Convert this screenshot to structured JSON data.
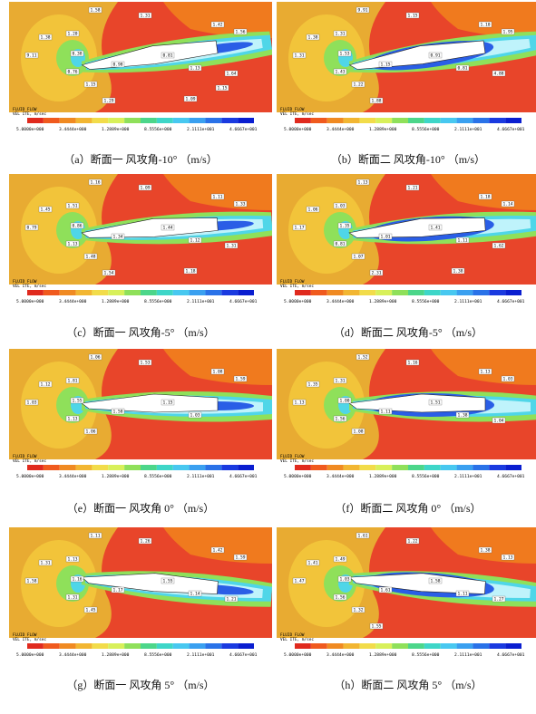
{
  "figure": {
    "panels": [
      {
        "id": "a",
        "caption": "（a）断面一  风攻角-10°  （m/s）",
        "header": [
          "FLUID FLOW",
          "VEL ITE, m/sec"
        ],
        "labels": [
          "1.58",
          "1.31",
          "1.42",
          "1.56",
          "1.38",
          "1.20",
          "9.11",
          "0.38",
          "0.76",
          "1.15",
          "0.98",
          "0.81",
          "1.13",
          "1.64",
          "1.29",
          "1.09",
          "1.15"
        ],
        "legend_values": [
          "5.0000e+000",
          "3.4444e+000",
          "1.2889e+000",
          "8.5556e+000",
          "2.1111e+001",
          "4.6667e+001"
        ]
      },
      {
        "id": "b",
        "caption": "（b）断面二  风攻角-10°  （m/s）",
        "header": [
          "FLUID FLOW",
          "VEL ITE, m/sec"
        ],
        "labels": [
          "9.91",
          "1.15",
          "1.10",
          "1.95",
          "1.38",
          "1.31",
          "1.31",
          "1.53",
          "1.43",
          "1.22",
          "1.15",
          "0.91",
          "0.81",
          "4.88",
          "1.88"
        ],
        "legend_values": [
          "5.0000e+000",
          "3.4444e+000",
          "1.2889e+000",
          "8.5556e+000",
          "2.1111e+001",
          "4.6667e+001"
        ]
      },
      {
        "id": "c",
        "caption": "（c）断面一  风攻角-5°  （m/s）",
        "header": [
          "FLUID FLOW",
          "VEL ITE, m/sec"
        ],
        "labels": [
          "1.16",
          "1.09",
          "1.11",
          "1.33",
          "1.45",
          "1.51",
          "0.79",
          "0.86",
          "1.13",
          "1.48",
          "1.34",
          "1.44",
          "1.12",
          "1.31",
          "1.54",
          "1.18"
        ],
        "legend_values": [
          "5.0000e+000",
          "3.4444e+000",
          "1.2889e+000",
          "8.5556e+000",
          "2.1111e+001",
          "4.6667e+001"
        ]
      },
      {
        "id": "d",
        "caption": "（d）断面二  风攻角-5°  （m/s）",
        "header": [
          "FLUID FLOW",
          "VEL ITE, m/sec"
        ],
        "labels": [
          "1.13",
          "1.21",
          "1.18",
          "1.14",
          "1.06",
          "1.03",
          "1.17",
          "1.35",
          "0.81",
          "1.07",
          "1.01",
          "1.41",
          "1.11",
          "1.62",
          "2.31",
          "1.38"
        ],
        "legend_values": [
          "5.0000e+000",
          "3.4444e+000",
          "1.2889e+000",
          "8.5556e+000",
          "2.1111e+001",
          "4.6667e+001"
        ]
      },
      {
        "id": "e",
        "caption": "（e）断面一  风攻角 0°  （m/s）",
        "header": [
          "FLUID FLOW",
          "VEL ITE, m/sec"
        ],
        "labels": [
          "1.06",
          "1.53",
          "1.08",
          "1.59",
          "1.12",
          "1.81",
          "1.03",
          "1.55",
          "1.13",
          "1.06",
          "1.58",
          "1.15",
          "1.03"
        ],
        "legend_values": [
          "5.0000e+000",
          "3.4444e+000",
          "1.2889e+000",
          "8.5556e+000",
          "2.1111e+001",
          "4.6667e+001"
        ]
      },
      {
        "id": "f",
        "caption": "（f）断面二  风攻角 0°  （m/s）",
        "header": [
          "FLUID FLOW",
          "VEL ITE, m/sec"
        ],
        "labels": [
          "1.52",
          "1.16",
          "1.13",
          "1.03",
          "1.35",
          "1.31",
          "1.13",
          "1.00",
          "1.56",
          "1.08",
          "1.11",
          "1.51",
          "1.38",
          "1.04"
        ],
        "legend_values": [
          "5.0000e+000",
          "3.4444e+000",
          "1.2889e+000",
          "8.5556e+000",
          "2.1111e+001",
          "4.6667e+001"
        ]
      },
      {
        "id": "g",
        "caption": "（g）断面一  风攻角 5°  （m/s）",
        "header": [
          "FLUID FLOW",
          "VEL ITE, m/sec"
        ],
        "labels": [
          "1.11",
          "1.26",
          "1.42",
          "1.59",
          "1.31",
          "1.13",
          "1.58",
          "1.16",
          "1.31",
          "1.45",
          "1.17",
          "1.55",
          "1.14",
          "1.21"
        ],
        "legend_values": [
          "5.0000e+000",
          "3.4444e+000",
          "1.2889e+000",
          "8.5556e+000",
          "2.1111e+001",
          "4.6667e+001"
        ]
      },
      {
        "id": "h",
        "caption": "（h）断面二  风攻角 5°  （m/s）",
        "header": [
          "FLUID FLOW",
          "VEL ITE, m/sec"
        ],
        "labels": [
          "1.61",
          "1.22",
          "1.38",
          "1.13",
          "1.41",
          "1.49",
          "1.47",
          "1.03",
          "1.56",
          "1.32",
          "1.61",
          "1.58",
          "1.11",
          "1.27",
          "1.55"
        ],
        "legend_values": [
          "5.0000e+000",
          "3.4444e+000",
          "1.2889e+000",
          "8.5556e+000",
          "2.1111e+001",
          "4.6667e+001"
        ]
      }
    ],
    "colors": {
      "far_field": "#e8ab32",
      "high": "#e8452a",
      "mid_high": "#f07a1e",
      "mid": "#f2c43a",
      "low_band": "#8fe05a",
      "cyan": "#4fd6e8",
      "blue": "#2a5ee6",
      "deep": "#0a1ed0",
      "white": "#ffffff",
      "legend": [
        "#e02a1e",
        "#f05a1e",
        "#f08a22",
        "#f2b632",
        "#f2dc4a",
        "#d8f05a",
        "#8fe05a",
        "#4cd68a",
        "#3ed6c8",
        "#48c8f0",
        "#3aa0f0",
        "#2a72e8",
        "#1a3ae0",
        "#0a1ed0"
      ]
    }
  }
}
